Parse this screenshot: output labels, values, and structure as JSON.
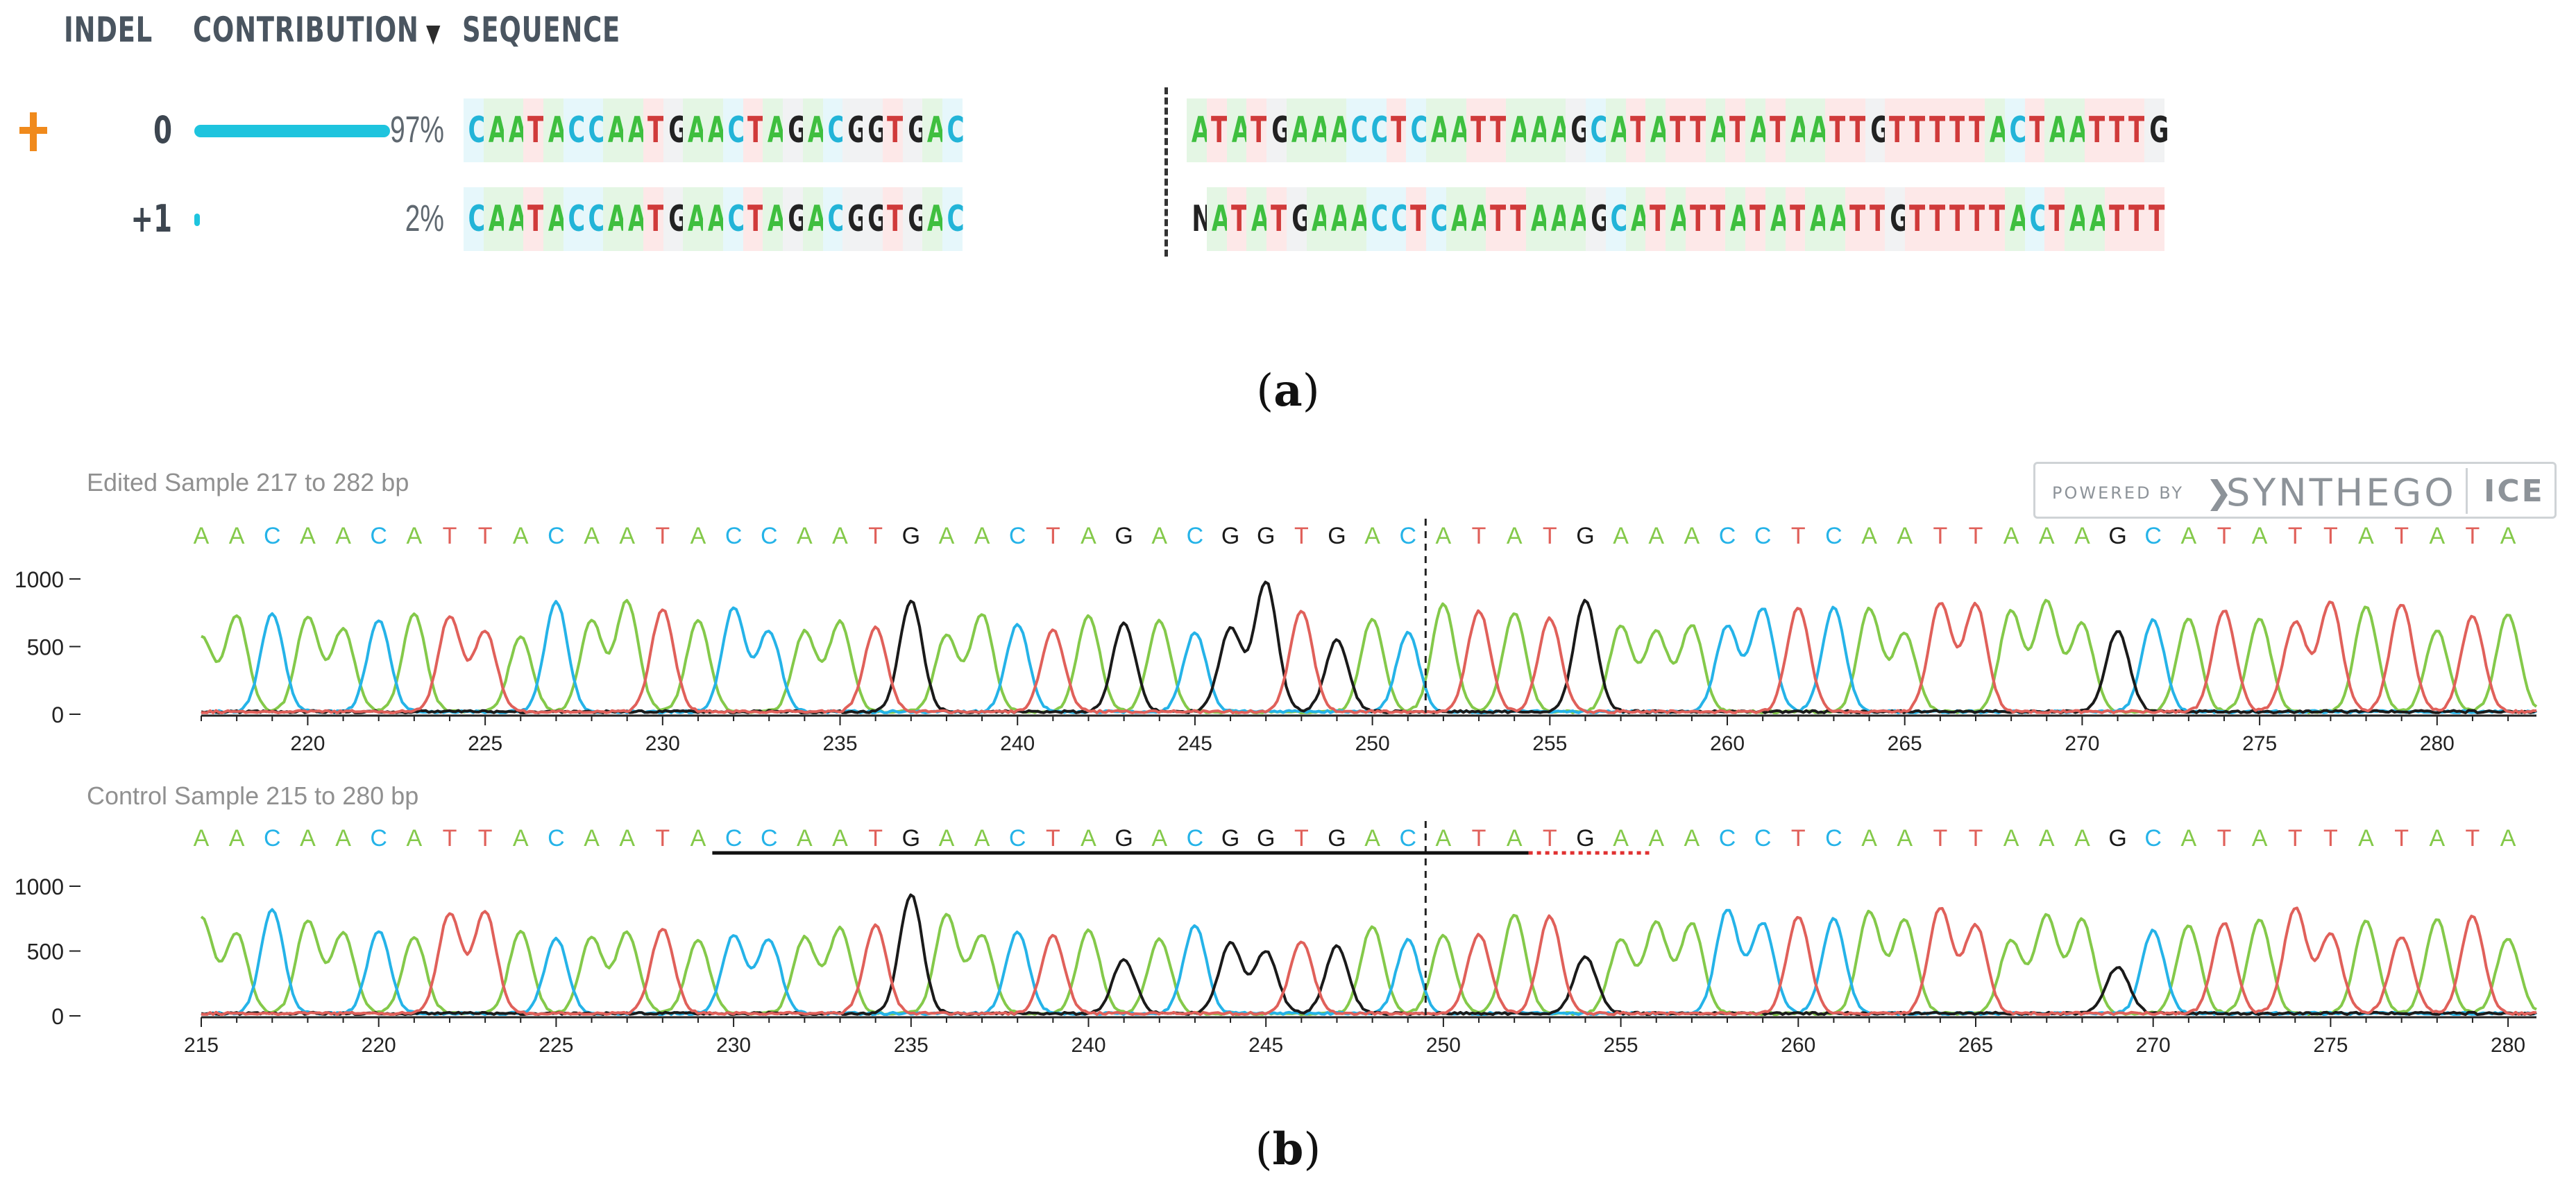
{
  "panel_a": {
    "headers": {
      "indel": "INDEL",
      "contribution": "CONTRIBUTION",
      "sort_arrow": "▼",
      "sequence": "SEQUENCE"
    },
    "rows": [
      {
        "indel": "0",
        "contribution": 0.97,
        "contribution_label": "97%",
        "marked": true,
        "seq_left": "CAATACCAATGAACTAGACGGTGAC",
        "seq_right": "ATATGAAACCTCAATTAAAGCATATTATATAATTGTTTTTACTAATTTG"
      },
      {
        "indel": "+1",
        "contribution": 0.02,
        "contribution_label": "2%",
        "marked": false,
        "seq_left": "CAATACCAATGAACTAGACGGTGAC",
        "seq_right": "NATATGAAACCTCAATTAAAGCATATTATATAATTGTTTTTACTAATTT"
      }
    ],
    "marker_icon": "plus-icon",
    "label": {
      "open": "(",
      "letter": "a",
      "close": ")"
    }
  },
  "panel_b": {
    "label": {
      "open": "(",
      "letter": "b",
      "close": ")"
    },
    "badge": {
      "powered_by": "POWERED BY",
      "icon": "chevron-right-icon",
      "brand": "SYNTHEGO",
      "product": "ICE"
    },
    "colors": {
      "A": "#84c94a",
      "C": "#25b3e8",
      "G": "#1a1a1a",
      "T": "#e0605a"
    },
    "traces": [
      {
        "title": "Edited Sample 217 to 282 bp",
        "x_start": 217,
        "x_end": 282.8,
        "cut_site": 251.5,
        "bases": "AACAACATTACAATACCAATGAACTAGACGGTGACATATGAAACCTCAATTAAAGCATATTATATA",
        "y_ticks": [
          "0",
          "500",
          "1000"
        ],
        "x_ticks": [
          "220",
          "225",
          "230",
          "235",
          "240",
          "245",
          "250",
          "255",
          "260",
          "265",
          "270",
          "275",
          "280"
        ],
        "guide_line": null,
        "pam_line": null
      },
      {
        "title": "Control Sample 215 to 280 bp",
        "x_start": 215,
        "x_end": 280.8,
        "cut_site": 249.5,
        "bases": "AACAACATTACAATACCAATGAACTAGACGGTGACATATGAAACCTCAATTAAAGCATATTATATA",
        "y_ticks": [
          "0",
          "500",
          "1000"
        ],
        "x_ticks": [
          "215",
          "220",
          "225",
          "230",
          "235",
          "240",
          "245",
          "250",
          "255",
          "260",
          "265",
          "270",
          "275",
          "280"
        ],
        "guide_line": [
          229.4,
          252.4
        ],
        "pam_line": [
          252.4,
          255.8
        ]
      }
    ]
  }
}
